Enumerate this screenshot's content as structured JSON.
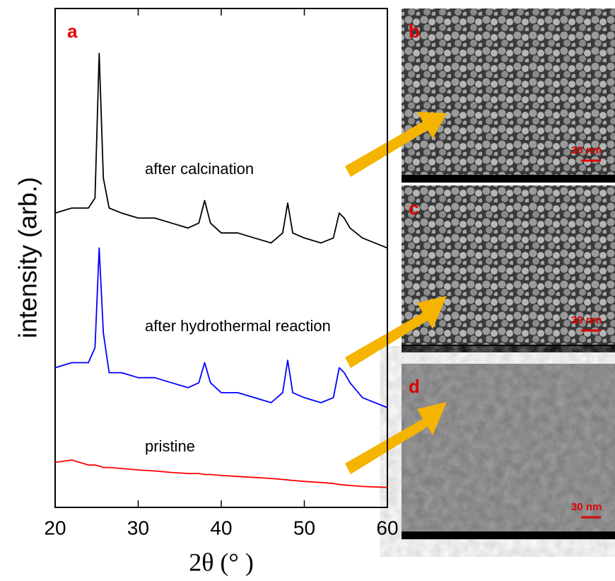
{
  "chart_data": {
    "type": "line",
    "panel_label": "a",
    "xlabel": "2θ (° )",
    "ylabel": "intensity (arb.)",
    "xlim": [
      20,
      60
    ],
    "xticks": [
      20,
      30,
      40,
      50,
      60
    ],
    "ylim": [
      0,
      100
    ],
    "x": [
      20,
      22,
      24,
      24.8,
      25.3,
      25.8,
      26.5,
      28,
      30,
      32,
      34,
      36,
      37.3,
      38,
      38.7,
      40,
      42,
      44,
      46,
      47.4,
      48,
      48.6,
      50,
      52,
      53.5,
      54.2,
      54.8,
      55.5,
      57,
      60
    ],
    "series": [
      {
        "name": "after calcination",
        "color": "#000000",
        "values": [
          59,
          60,
          60,
          62,
          91,
          66,
          60,
          59,
          58,
          58,
          57,
          56,
          57,
          61.5,
          57,
          55,
          55,
          54,
          53,
          55,
          61,
          55,
          54,
          53,
          54,
          59,
          58,
          56,
          54,
          52
        ]
      },
      {
        "name": "after hydrothermal reaction",
        "color": "#0000ff",
        "values": [
          28,
          29,
          29,
          32,
          52,
          35,
          27,
          27,
          26,
          26,
          25,
          24,
          25,
          29,
          25,
          23,
          23,
          22,
          21,
          23,
          29.5,
          23,
          22,
          21,
          22,
          28,
          27,
          25,
          22,
          20
        ]
      },
      {
        "name": "pristine",
        "color": "#ff0000",
        "values": [
          9,
          9.5,
          8.5,
          8.5,
          8.3,
          8,
          8,
          7.8,
          7.5,
          7.3,
          7,
          6.8,
          6.8,
          6.6,
          6.6,
          6.4,
          6.2,
          6,
          5.8,
          5.6,
          5.5,
          5.4,
          5.2,
          5,
          4.8,
          4.6,
          4.5,
          4.4,
          4.2,
          4
        ]
      }
    ],
    "images": [
      {
        "label": "b",
        "scale": "30 nm"
      },
      {
        "label": "c",
        "scale": "30 nm"
      },
      {
        "label": "d",
        "scale": "30 nm"
      }
    ]
  }
}
